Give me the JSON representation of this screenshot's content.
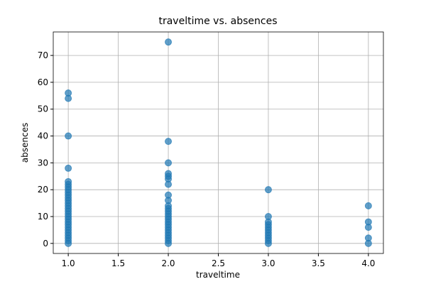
{
  "chart_data": {
    "type": "scatter",
    "title": "traveltime vs. absences",
    "xlabel": "traveltime",
    "ylabel": "absences",
    "series": [
      {
        "color": "#1f77b4",
        "x": [
          1,
          1,
          1,
          1,
          1,
          1,
          1,
          1,
          1,
          1,
          1,
          1,
          1,
          1,
          1,
          1,
          1,
          1,
          1,
          1,
          1,
          1,
          1,
          1,
          1,
          1,
          1,
          1,
          2,
          2,
          2,
          2,
          2,
          2,
          2,
          2,
          2,
          2,
          2,
          2,
          2,
          2,
          2,
          2,
          2,
          2,
          2,
          2,
          2,
          2,
          2,
          2,
          3,
          3,
          3,
          3,
          3,
          3,
          3,
          3,
          3,
          3,
          3,
          4,
          4,
          4,
          4,
          4
        ],
        "values": [
          0,
          1,
          2,
          3,
          4,
          5,
          6,
          7,
          8,
          9,
          10,
          11,
          12,
          13,
          14,
          15,
          16,
          17,
          18,
          19,
          20,
          21,
          22,
          23,
          28,
          40,
          54,
          56,
          0,
          1,
          2,
          3,
          4,
          5,
          6,
          7,
          8,
          9,
          10,
          11,
          12,
          13,
          14,
          16,
          18,
          22,
          24,
          25,
          26,
          30,
          38,
          75,
          0,
          1,
          2,
          3,
          4,
          5,
          6,
          7,
          8,
          10,
          20,
          0,
          2,
          6,
          8,
          14
        ]
      }
    ],
    "xlim": [
      0.85,
      4.15
    ],
    "ylim": [
      -3.75,
      78.75
    ],
    "xticks": [
      {
        "value": 1,
        "label": "1.0"
      },
      {
        "value": 1.5,
        "label": "1.5"
      },
      {
        "value": 2,
        "label": "2.0"
      },
      {
        "value": 2.5,
        "label": "2.5"
      },
      {
        "value": 3,
        "label": "3.0"
      },
      {
        "value": 3.5,
        "label": "3.5"
      },
      {
        "value": 4,
        "label": "4.0"
      }
    ],
    "yticks": [
      0,
      10,
      20,
      30,
      40,
      50,
      60,
      70
    ],
    "grid": true
  }
}
